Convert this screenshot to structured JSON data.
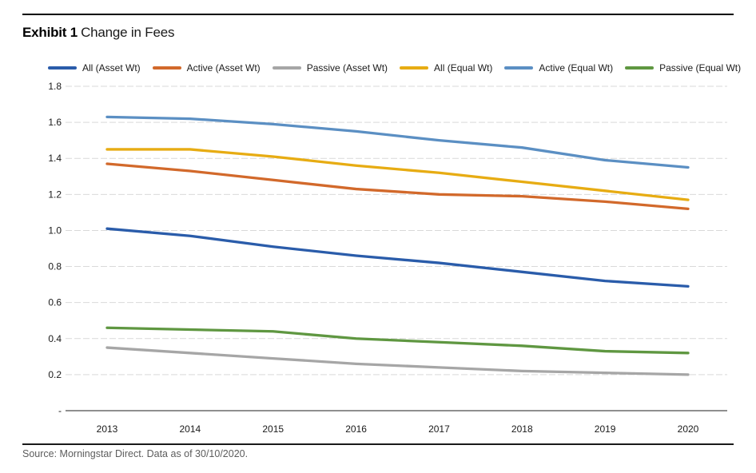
{
  "header": {
    "exhibit_label": "Exhibit 1",
    "title": "Change in Fees"
  },
  "footer": {
    "source": "Source: Morningstar Direct. Data as of 30/10/2020."
  },
  "chart_data": {
    "type": "line",
    "title": "Change in Fees",
    "x": [
      2013,
      2014,
      2015,
      2016,
      2017,
      2018,
      2019,
      2020
    ],
    "series": [
      {
        "name": "All (Asset Wt)",
        "color": "#2a5caa",
        "values": [
          1.01,
          0.97,
          0.91,
          0.86,
          0.82,
          0.77,
          0.72,
          0.69
        ]
      },
      {
        "name": "Active (Asset Wt)",
        "color": "#d2692b",
        "values": [
          1.37,
          1.33,
          1.28,
          1.23,
          1.2,
          1.19,
          1.16,
          1.12
        ]
      },
      {
        "name": "Passive (Asset Wt)",
        "color": "#a6a6a6",
        "values": [
          0.35,
          0.32,
          0.29,
          0.26,
          0.24,
          0.22,
          0.21,
          0.2
        ]
      },
      {
        "name": "All (Equal Wt)",
        "color": "#e7ac13",
        "values": [
          1.45,
          1.45,
          1.41,
          1.36,
          1.32,
          1.27,
          1.22,
          1.17
        ]
      },
      {
        "name": "Active (Equal Wt)",
        "color": "#5b8fc3",
        "values": [
          1.63,
          1.62,
          1.59,
          1.55,
          1.5,
          1.46,
          1.39,
          1.35
        ]
      },
      {
        "name": "Passive (Equal Wt)",
        "color": "#5f9741",
        "values": [
          0.46,
          0.45,
          0.44,
          0.4,
          0.38,
          0.36,
          0.33,
          0.32
        ]
      }
    ],
    "ylim": [
      0,
      1.8
    ],
    "ytick_step": 0.2,
    "ytick_labels": [
      "-",
      "0.2",
      "0.4",
      "0.6",
      "0.8",
      "1.0",
      "1.2",
      "1.4",
      "1.6",
      "1.8"
    ],
    "xlabel": "",
    "ylabel": "",
    "legend_position": "top",
    "grid": "horizontal-dashed",
    "grid_color": "#d9d9d9",
    "zero_axis_color": "#8f8f8f",
    "tick_label_color": "#1a1a1a"
  }
}
